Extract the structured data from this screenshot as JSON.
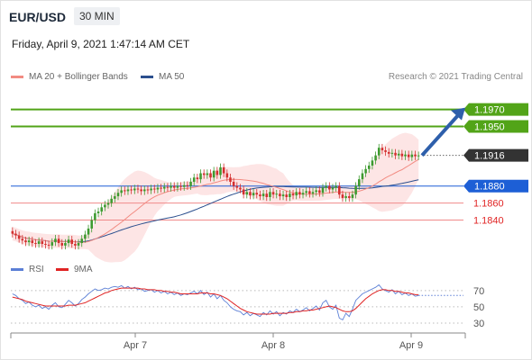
{
  "header": {
    "symbol": "EUR/USD",
    "timeframe": "30 MIN",
    "datetime": "Friday, April 9, 2021 1:47:14 AM CET",
    "credit": "Research © 2021 Trading Central"
  },
  "legend": {
    "items": [
      {
        "label": "MA 20 + Bollinger Bands",
        "color": "#f28b82"
      },
      {
        "label": "MA 50",
        "color": "#2b4f8e"
      }
    ],
    "rsi_items": [
      {
        "label": "RSI",
        "color": "#5b7fd6"
      },
      {
        "label": "9MA",
        "color": "#e02424"
      }
    ]
  },
  "chart_data": {
    "type": "candlestick",
    "x_ticks": [
      "Apr 7",
      "Apr 8",
      "Apr 9"
    ],
    "price_levels": [
      {
        "value": 1.197,
        "label": "1.1970",
        "kind": "resistance",
        "color": "#52a418"
      },
      {
        "value": 1.195,
        "label": "1.1950",
        "kind": "resistance",
        "color": "#52a418"
      },
      {
        "value": 1.1916,
        "label": "1.1916",
        "kind": "last",
        "color": "#333333"
      },
      {
        "value": 1.188,
        "label": "1.1880",
        "kind": "pivot",
        "color": "#1d5fd6"
      },
      {
        "value": 1.186,
        "label": "1.1860",
        "kind": "support",
        "color": "#e02424"
      },
      {
        "value": 1.184,
        "label": "1.1840",
        "kind": "support",
        "color": "#e02424"
      }
    ],
    "last_price": 1.1916,
    "price_range": [
      1.1794,
      1.1995
    ],
    "candles_close": [
      1.1824,
      1.1822,
      1.1818,
      1.1816,
      1.1814,
      1.1816,
      1.1813,
      1.1812,
      1.1815,
      1.1812,
      1.1811,
      1.181,
      1.1814,
      1.1818,
      1.1813,
      1.181,
      1.1813,
      1.1817,
      1.1812,
      1.181,
      1.1813,
      1.1818,
      1.1823,
      1.183,
      1.184,
      1.1848,
      1.185,
      1.1855,
      1.1858,
      1.186,
      1.1865,
      1.1868,
      1.1872,
      1.1875,
      1.1874,
      1.1876,
      1.1875,
      1.1877,
      1.1876,
      1.1874,
      1.1876,
      1.1875,
      1.1877,
      1.1876,
      1.1878,
      1.1877,
      1.1879,
      1.1878,
      1.188,
      1.1878,
      1.188,
      1.1879,
      1.1881,
      1.188,
      1.1885,
      1.189,
      1.1888,
      1.1895,
      1.1893,
      1.1895,
      1.189,
      1.1898,
      1.1893,
      1.1902,
      1.1895,
      1.189,
      1.1885,
      1.188,
      1.1878,
      1.1876,
      1.187,
      1.1873,
      1.1869,
      1.1872,
      1.187,
      1.1868,
      1.1871,
      1.1867,
      1.1873,
      1.187,
      1.1871,
      1.1868,
      1.187,
      1.1867,
      1.1871,
      1.1869,
      1.1873,
      1.187,
      1.1872,
      1.1874,
      1.1871,
      1.1873,
      1.1875,
      1.1872,
      1.1878,
      1.188,
      1.1876,
      1.1878,
      1.188,
      1.187,
      1.1866,
      1.1868,
      1.1866,
      1.187,
      1.188,
      1.1888,
      1.1895,
      1.19,
      1.1904,
      1.191,
      1.1916,
      1.1925,
      1.1922,
      1.192,
      1.1918,
      1.1919,
      1.1916,
      1.1918,
      1.1915,
      1.1917,
      1.1914,
      1.1917,
      1.1915,
      1.1916
    ],
    "rsi_ticks": [
      70,
      50,
      30
    ],
    "rsi_range": [
      20,
      82
    ],
    "rsi": [
      66,
      64,
      60,
      58,
      54,
      56,
      52,
      50,
      52,
      48,
      50,
      47,
      52,
      55,
      50,
      49,
      53,
      58,
      55,
      51,
      54,
      59,
      62,
      66,
      69,
      72,
      70,
      71,
      73,
      72,
      74,
      75,
      74,
      76,
      73,
      75,
      72,
      74,
      71,
      72,
      69,
      70,
      71,
      68,
      70,
      67,
      69,
      66,
      68,
      65,
      67,
      64,
      66,
      65,
      67,
      69,
      66,
      70,
      65,
      68,
      62,
      66,
      60,
      64,
      58,
      55,
      50,
      47,
      45,
      44,
      40,
      43,
      39,
      42,
      40,
      38,
      43,
      40,
      45,
      41,
      44,
      39,
      43,
      41,
      45,
      43,
      47,
      44,
      46,
      49,
      45,
      48,
      51,
      46,
      55,
      58,
      50,
      47,
      52,
      36,
      34,
      42,
      38,
      47,
      58,
      62,
      66,
      68,
      70,
      72,
      74,
      77,
      72,
      70,
      68,
      71,
      66,
      69,
      65,
      67,
      64,
      66,
      63,
      64
    ],
    "rsi_ma": [
      62,
      61,
      60,
      59,
      57,
      56,
      55,
      54,
      53,
      52,
      51,
      51,
      51,
      51,
      51,
      51,
      51,
      52,
      52,
      52,
      53,
      54,
      55,
      57,
      59,
      61,
      63,
      65,
      67,
      68,
      70,
      71,
      72,
      73,
      73,
      73,
      73,
      73,
      73,
      72,
      72,
      71,
      71,
      71,
      70,
      70,
      69,
      69,
      68,
      68,
      67,
      66,
      66,
      66,
      66,
      66,
      66,
      67,
      67,
      67,
      66,
      66,
      65,
      64,
      62,
      60,
      57,
      54,
      51,
      48,
      46,
      44,
      43,
      42,
      41,
      41,
      41,
      41,
      41,
      42,
      42,
      42,
      42,
      42,
      43,
      43,
      44,
      44,
      45,
      45,
      46,
      46,
      47,
      48,
      49,
      50,
      51,
      50,
      49,
      47,
      45,
      44,
      44,
      45,
      48,
      52,
      56,
      60,
      63,
      66,
      68,
      70,
      71,
      71,
      70,
      70,
      69,
      69,
      68,
      67,
      67,
      66,
      65,
      65
    ]
  }
}
